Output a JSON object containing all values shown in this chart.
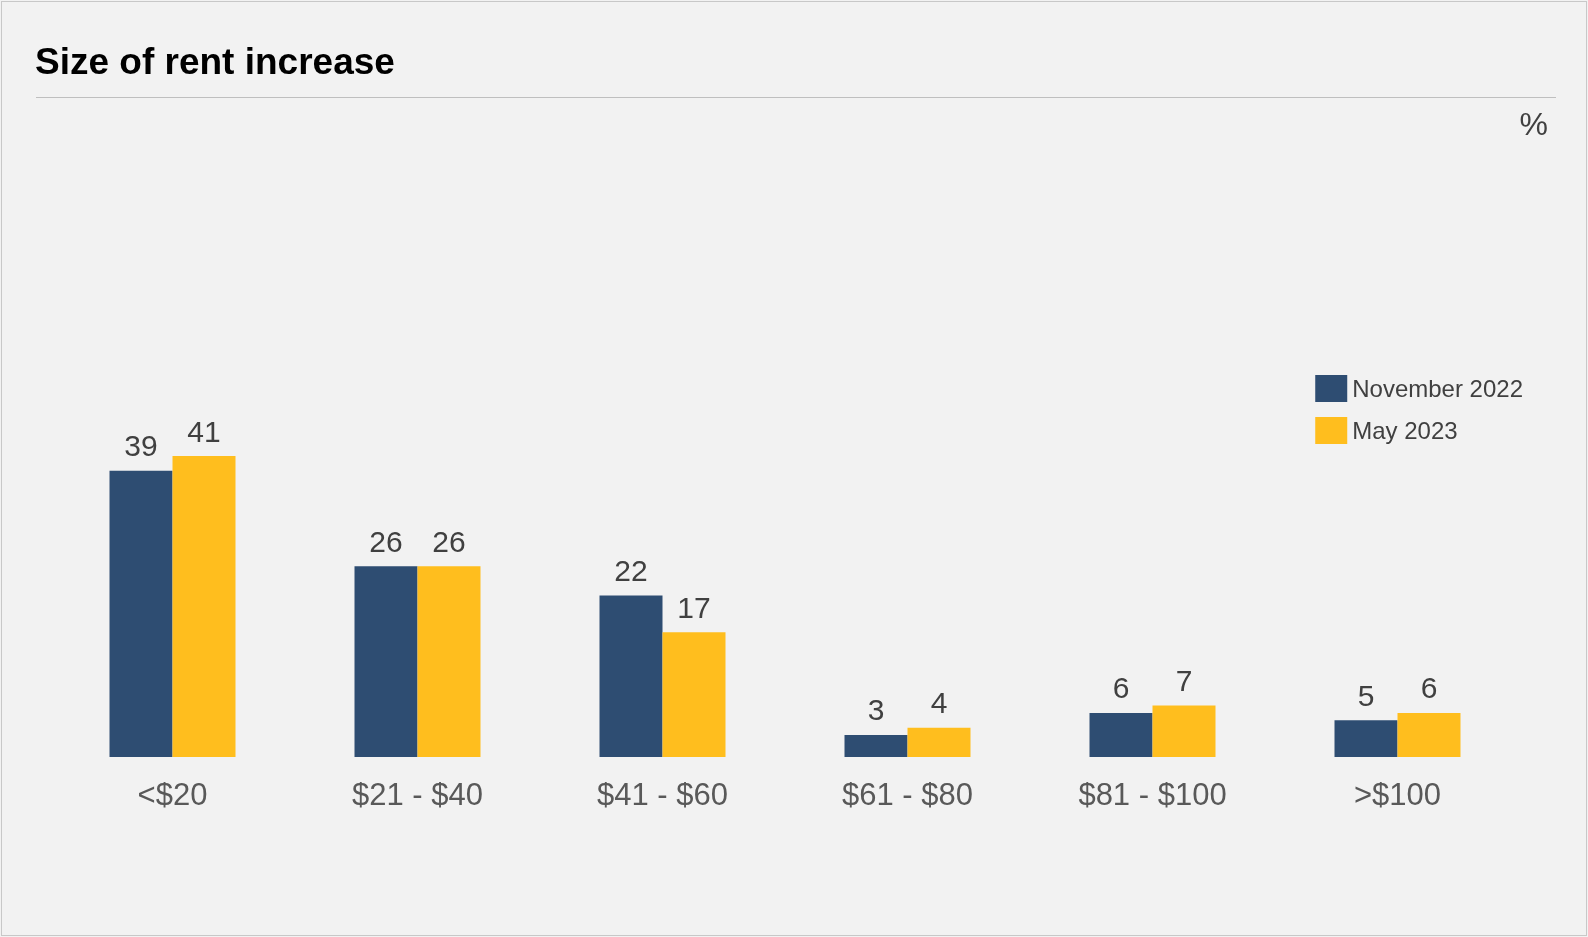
{
  "chart_data": {
    "type": "bar",
    "title": "Size of rent increase",
    "annotations": [
      "%"
    ],
    "categories": [
      "<$20",
      "$21 - $40",
      "$41 - $60",
      "$61 - $80",
      "$81 - $100",
      ">$100"
    ],
    "series": [
      {
        "name": "November 2022",
        "color": "#2e4d72",
        "values": [
          39,
          26,
          22,
          3,
          6,
          5
        ]
      },
      {
        "name": "May 2023",
        "color": "#ffbe1e",
        "values": [
          41,
          26,
          17,
          4,
          7,
          6
        ]
      }
    ],
    "data_labels": true,
    "legend": "right"
  }
}
